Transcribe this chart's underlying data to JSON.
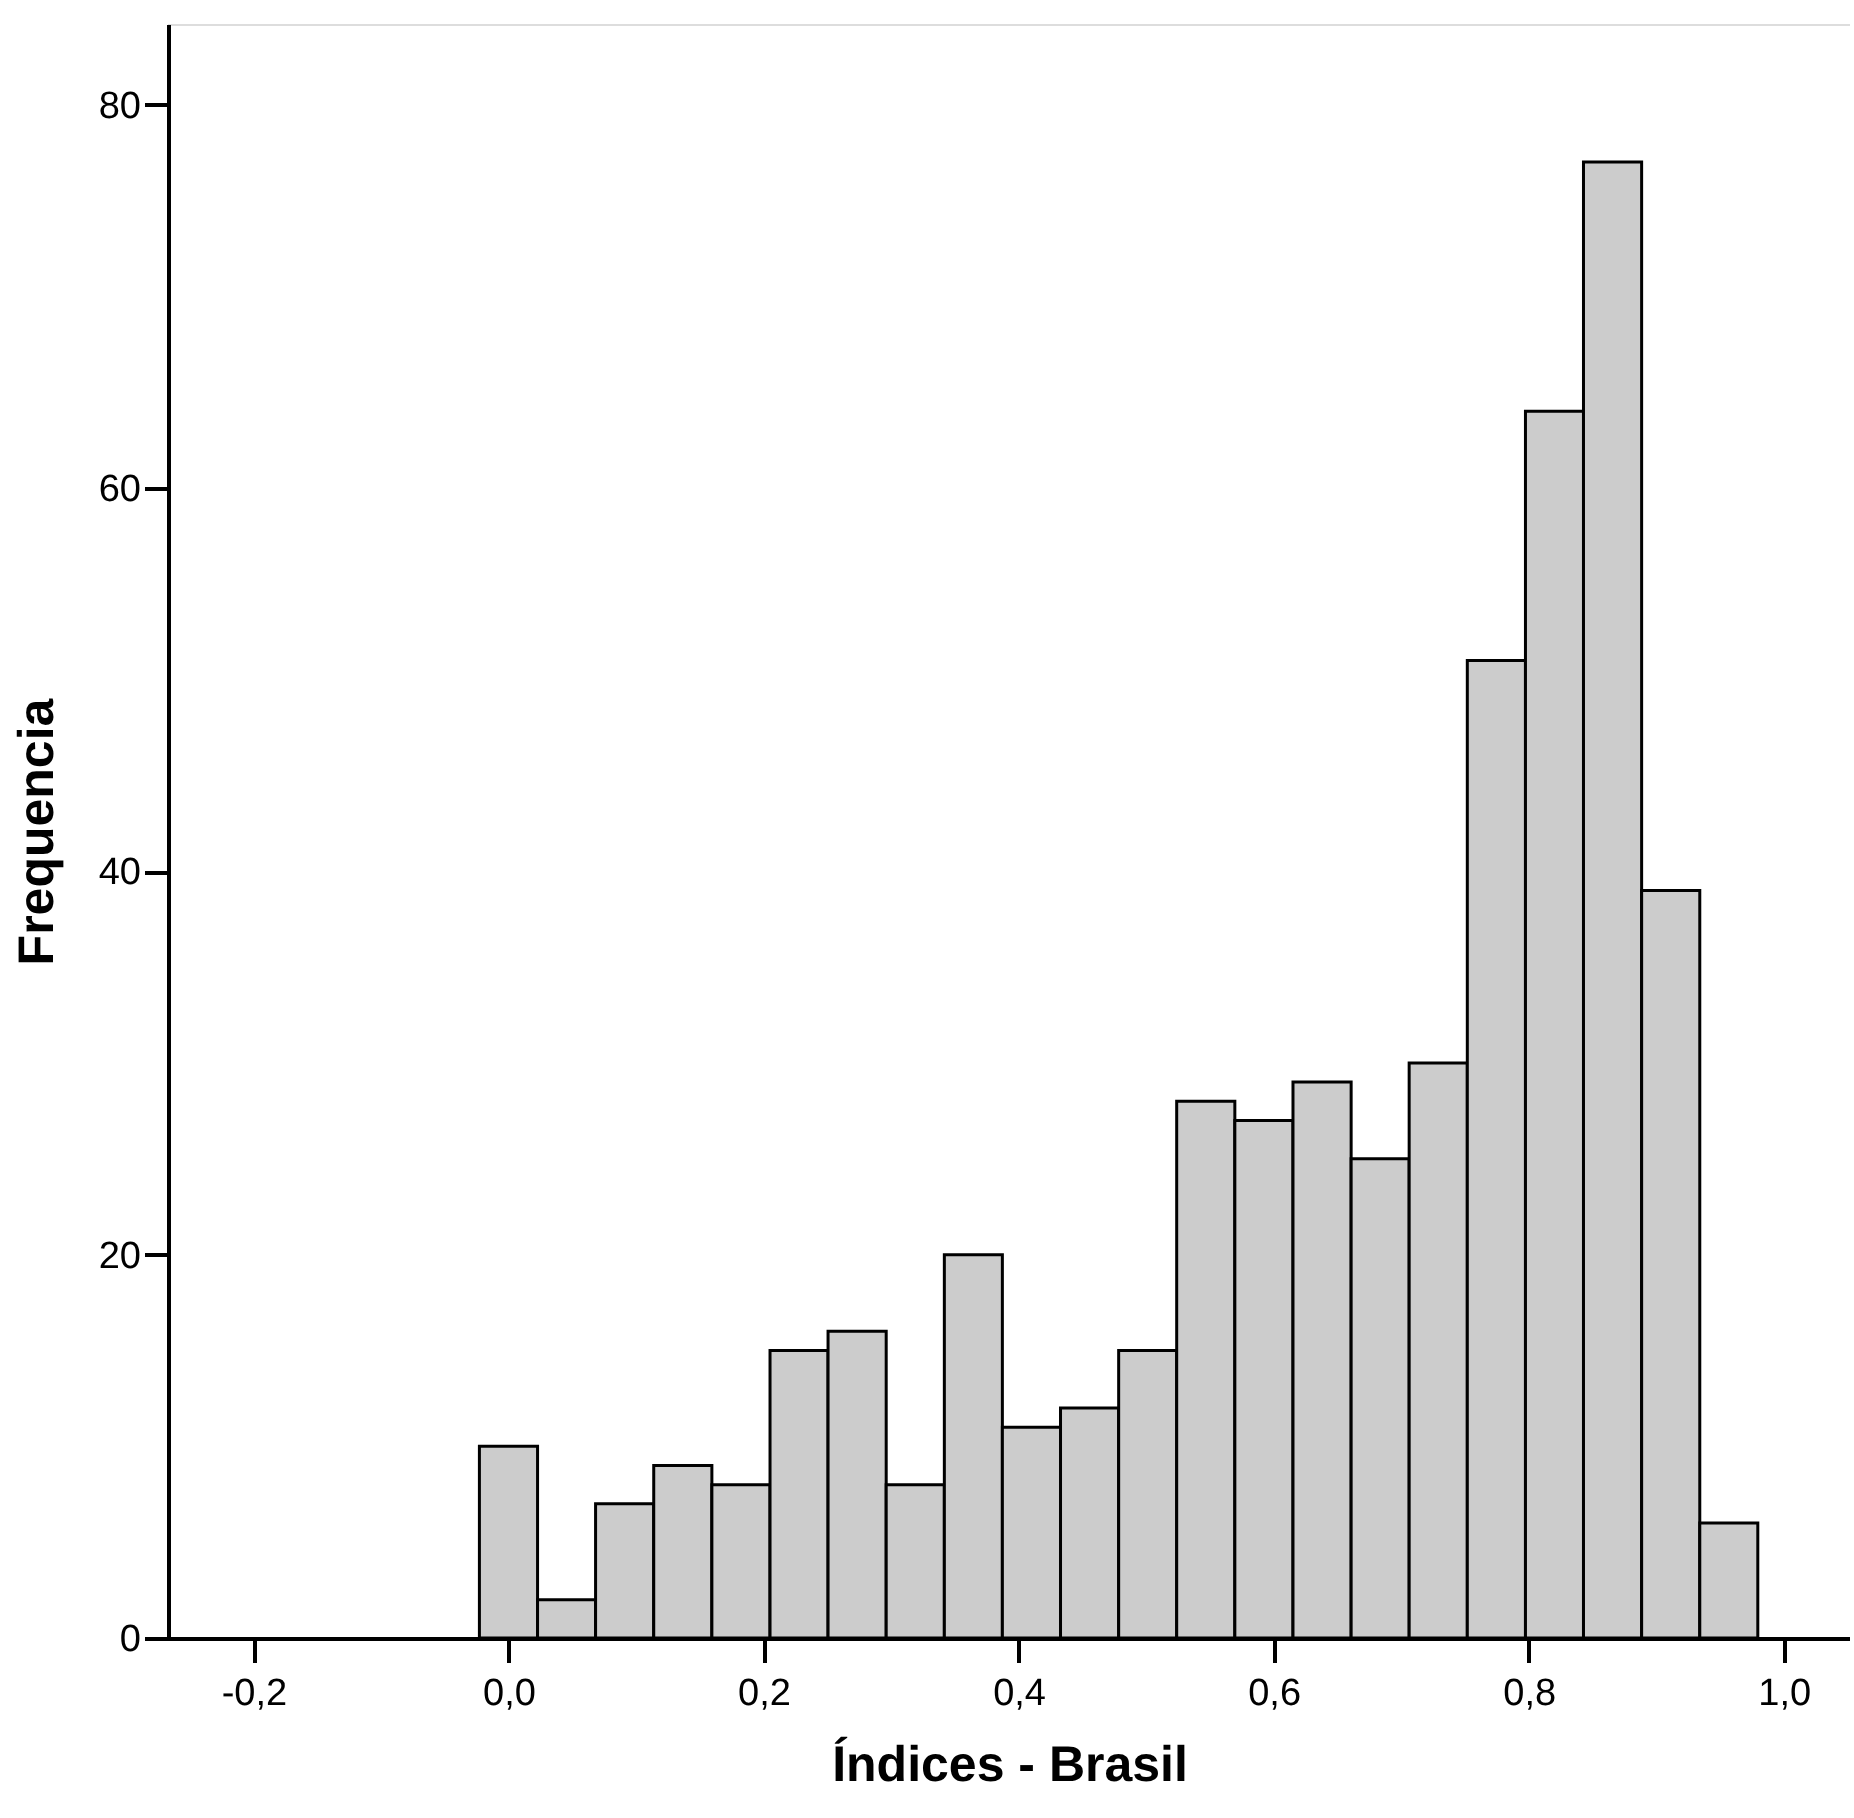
{
  "chart_data": {
    "type": "histogram",
    "xlabel": "Índices - Brasil",
    "ylabel": "Frequencia",
    "bins": [
      -0.0228,
      0.0228,
      0.0683,
      0.1139,
      0.1595,
      0.2051,
      0.2506,
      0.2962,
      0.3418,
      0.3873,
      0.4329,
      0.4785,
      0.524,
      0.5696,
      0.6152,
      0.6608,
      0.7063,
      0.7519,
      0.7975,
      0.843,
      0.8886,
      0.9342,
      0.9797
    ],
    "values": [
      10,
      2,
      7,
      9,
      8,
      15,
      16,
      8,
      20,
      11,
      12,
      15,
      28,
      27,
      29,
      25,
      30,
      51,
      64,
      77,
      39,
      6
    ],
    "color": "#cccccc",
    "xlim": [
      -0.267,
      1.052
    ],
    "ylim": [
      0,
      84.2
    ],
    "xticks": [
      {
        "value": -0.2,
        "label": "-0,2"
      },
      {
        "value": 0.0,
        "label": "0,0"
      },
      {
        "value": 0.2,
        "label": "0,2"
      },
      {
        "value": 0.4,
        "label": "0,4"
      },
      {
        "value": 0.6,
        "label": "0,6"
      },
      {
        "value": 0.8,
        "label": "0,8"
      },
      {
        "value": 1.0,
        "label": "1,0"
      }
    ],
    "yticks": [
      0,
      20,
      40,
      60,
      80
    ],
    "grid": false
  }
}
